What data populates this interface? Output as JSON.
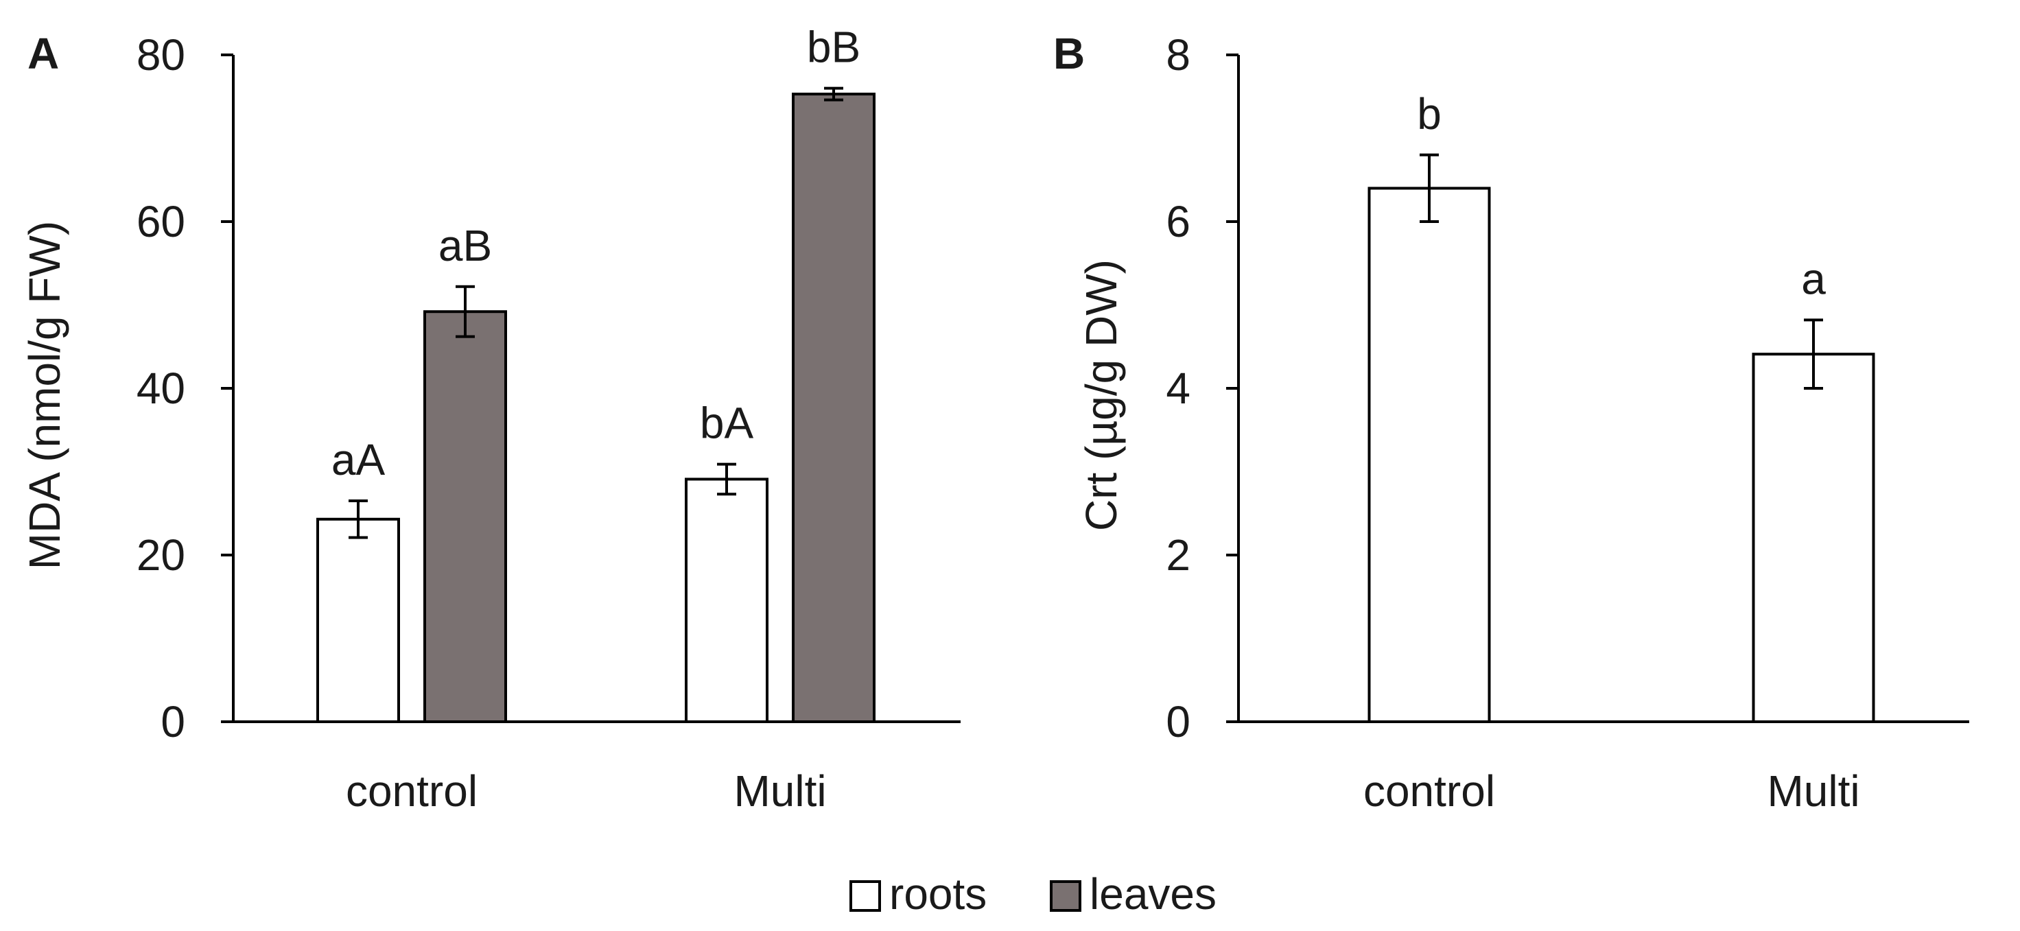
{
  "legend": [
    {
      "label": "roots",
      "color": "#ffffff"
    },
    {
      "label": "leaves",
      "color": "#7a7171"
    }
  ],
  "colors": {
    "roots": "#ffffff",
    "leaves": "#7a7171",
    "stroke": "#000000"
  },
  "chart_data": [
    {
      "panel": "A",
      "type": "bar",
      "categories": [
        "control",
        "Multi"
      ],
      "ylabel": "MDA (nmol/g FW)",
      "ylim": [
        0,
        80
      ],
      "yticks": [
        0,
        20,
        40,
        60,
        80
      ],
      "series": [
        {
          "name": "roots",
          "values": [
            24.3,
            29.1
          ],
          "errors": [
            2.2,
            1.8
          ],
          "labels": [
            "aA",
            "bA"
          ]
        },
        {
          "name": "leaves",
          "values": [
            49.2,
            75.3
          ],
          "errors": [
            3.0,
            0.7
          ],
          "labels": [
            "aB",
            "bB"
          ]
        }
      ]
    },
    {
      "panel": "B",
      "type": "bar",
      "categories": [
        "control",
        "Multi"
      ],
      "ylabel": "Crt (µg/g DW)",
      "ylim": [
        0,
        8
      ],
      "yticks": [
        0,
        2,
        4,
        6,
        8
      ],
      "series": [
        {
          "values": [
            6.4,
            4.41
          ],
          "errors": [
            0.4,
            0.41
          ],
          "labels": [
            "b",
            "a"
          ]
        }
      ]
    }
  ]
}
